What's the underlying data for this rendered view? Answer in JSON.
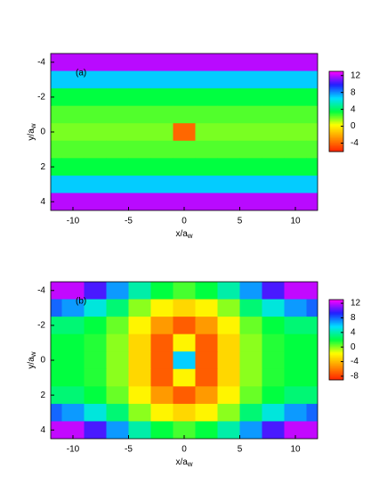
{
  "chart_data": [
    {
      "type": "heatmap",
      "panel_label": "(a)",
      "xlabel": "x/a",
      "xlabel_sub": "w",
      "ylabel": "y/a",
      "ylabel_sub": "w",
      "xlim": [
        -12,
        12
      ],
      "ylim": [
        4.5,
        -4.5
      ],
      "xticks": [
        -10,
        -5,
        0,
        5,
        10
      ],
      "yticks": [
        -4,
        -2,
        0,
        2,
        4
      ],
      "x": [
        -12,
        -10,
        -8,
        -6,
        -4,
        -2,
        0,
        2,
        4,
        6,
        8,
        10,
        12
      ],
      "y": [
        -4,
        -3,
        -2,
        -1,
        0,
        1,
        2,
        3,
        4
      ],
      "z": [
        [
          12,
          12,
          12,
          12,
          12,
          12,
          12,
          12,
          12,
          12,
          12,
          12,
          12
        ],
        [
          7,
          7,
          7,
          7,
          7,
          7,
          7,
          7,
          7,
          7,
          7,
          7,
          7
        ],
        [
          3.5,
          3.5,
          3.5,
          3.5,
          3.5,
          3.5,
          3.5,
          3.5,
          3.5,
          3.5,
          3.5,
          3.5,
          3.5
        ],
        [
          2.5,
          2.5,
          2.5,
          2.5,
          2.5,
          2.5,
          2.5,
          2.5,
          2.5,
          2.5,
          2.5,
          2.5,
          2.5
        ],
        [
          2,
          2,
          2,
          2,
          2,
          2,
          -4,
          2,
          2,
          2,
          2,
          2,
          2
        ],
        [
          2.5,
          2.5,
          2.5,
          2.5,
          2.5,
          2.5,
          2.5,
          2.5,
          2.5,
          2.5,
          2.5,
          2.5,
          2.5
        ],
        [
          3.5,
          3.5,
          3.5,
          3.5,
          3.5,
          3.5,
          3.5,
          3.5,
          3.5,
          3.5,
          3.5,
          3.5,
          3.5
        ],
        [
          7,
          7,
          7,
          7,
          7,
          7,
          7,
          7,
          7,
          7,
          7,
          7,
          7
        ],
        [
          12,
          12,
          12,
          12,
          12,
          12,
          12,
          12,
          12,
          12,
          12,
          12,
          12
        ]
      ],
      "zlim": [
        -6,
        13
      ],
      "zticks": [
        12,
        8,
        4,
        0,
        -4
      ],
      "colors": [
        "#ff2000",
        "#ff9000",
        "#ffff00",
        "#00ff40",
        "#00e0ff",
        "#2020ff",
        "#ff00ff"
      ]
    },
    {
      "type": "heatmap",
      "panel_label": "(b)",
      "xlabel": "x/a",
      "xlabel_sub": "w",
      "ylabel": "y/a",
      "ylabel_sub": "w",
      "xlim": [
        -12,
        12
      ],
      "ylim": [
        4.5,
        -4.5
      ],
      "xticks": [
        -10,
        -5,
        0,
        5,
        10
      ],
      "yticks": [
        -4,
        -2,
        0,
        2,
        4
      ],
      "x": [
        -12,
        -10,
        -8,
        -6,
        -4,
        -2,
        0,
        2,
        4,
        6,
        8,
        10,
        12
      ],
      "y": [
        -4,
        -3,
        -2,
        -1,
        0,
        1,
        2,
        3,
        4
      ],
      "z": [
        [
          12,
          12,
          10,
          7,
          4,
          2,
          1,
          2,
          4,
          7,
          10,
          12,
          12
        ],
        [
          8,
          7,
          5,
          3,
          0,
          -2,
          -3,
          -2,
          0,
          3,
          5,
          7,
          8
        ],
        [
          3,
          3,
          2,
          0.5,
          -2,
          -5,
          -7,
          -5,
          -2,
          0.5,
          2,
          3,
          3
        ],
        [
          2,
          2,
          1.5,
          0,
          -3,
          -7,
          -2,
          -7,
          -3,
          0,
          1.5,
          2,
          2
        ],
        [
          2,
          2,
          1.5,
          0,
          -3,
          -7,
          6,
          -7,
          -3,
          0,
          1.5,
          2,
          2
        ],
        [
          2,
          2,
          1.5,
          0,
          -3,
          -7,
          -2,
          -7,
          -3,
          0,
          1.5,
          2,
          2
        ],
        [
          3,
          3,
          2,
          0.5,
          -2,
          -5,
          -7,
          -5,
          -2,
          0.5,
          2,
          3,
          3
        ],
        [
          8,
          7,
          5,
          3,
          0,
          -2,
          -3,
          -2,
          0,
          3,
          5,
          7,
          8
        ],
        [
          12,
          12,
          10,
          7,
          4,
          2,
          1,
          2,
          4,
          7,
          10,
          12,
          12
        ]
      ],
      "zlim": [
        -9,
        13
      ],
      "zticks": [
        12,
        8,
        4,
        0,
        -4,
        -8
      ],
      "colors": [
        "#ff2000",
        "#ff9000",
        "#ffff00",
        "#00ff40",
        "#00e0ff",
        "#2020ff",
        "#ff00ff"
      ]
    }
  ]
}
